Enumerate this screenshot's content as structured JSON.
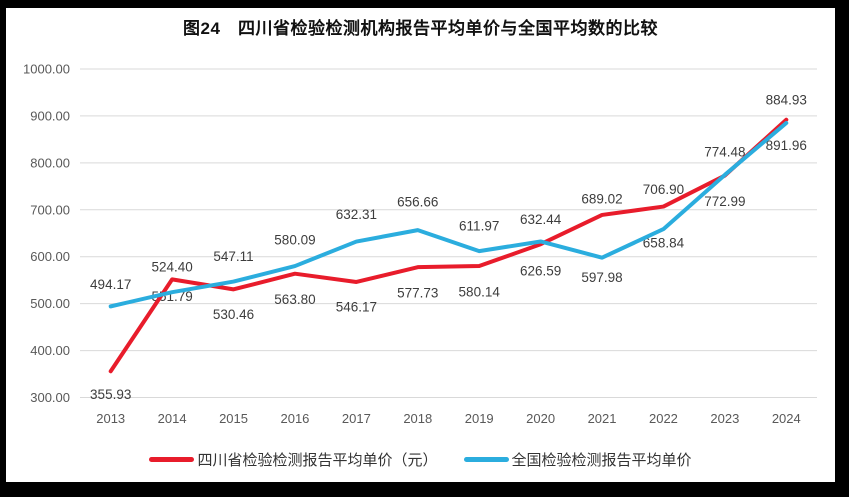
{
  "title": "图24　四川省检验检测机构报告平均单价与全国平均数的比较",
  "chart_data": {
    "type": "line",
    "categories": [
      "2013",
      "2014",
      "2015",
      "2016",
      "2017",
      "2018",
      "2019",
      "2020",
      "2021",
      "2022",
      "2023",
      "2024"
    ],
    "series": [
      {
        "name": "四川省检验检测报告平均单价（元）",
        "color": "#e81c2b",
        "values": [
          355.93,
          551.79,
          530.46,
          563.8,
          546.17,
          577.73,
          580.14,
          626.59,
          689.02,
          706.9,
          772.99,
          891.96
        ]
      },
      {
        "name": "全国检验检测报告平均单价",
        "color": "#2badde",
        "values": [
          494.17,
          524.4,
          547.11,
          580.09,
          632.31,
          656.66,
          611.97,
          632.44,
          597.98,
          658.84,
          774.48,
          884.93
        ]
      }
    ],
    "title": "图24　四川省检验检测机构报告平均单价与全国平均数的比较",
    "xlabel": "",
    "ylabel": "",
    "ylim": [
      300,
      1000
    ],
    "ytick_step": 100,
    "ytick_labels": [
      "300.00",
      "400.00",
      "500.00",
      "600.00",
      "700.00",
      "800.00",
      "900.00",
      "1000.00"
    ],
    "grid": true,
    "legend_position": "bottom",
    "data_labels": true
  },
  "colors": {
    "frame": "#000000",
    "background": "#ffffff",
    "gridline": "#d9d9d9",
    "axis_text": "#595959",
    "data_label_text": "#3d3d3d",
    "title_text": "#111111"
  }
}
